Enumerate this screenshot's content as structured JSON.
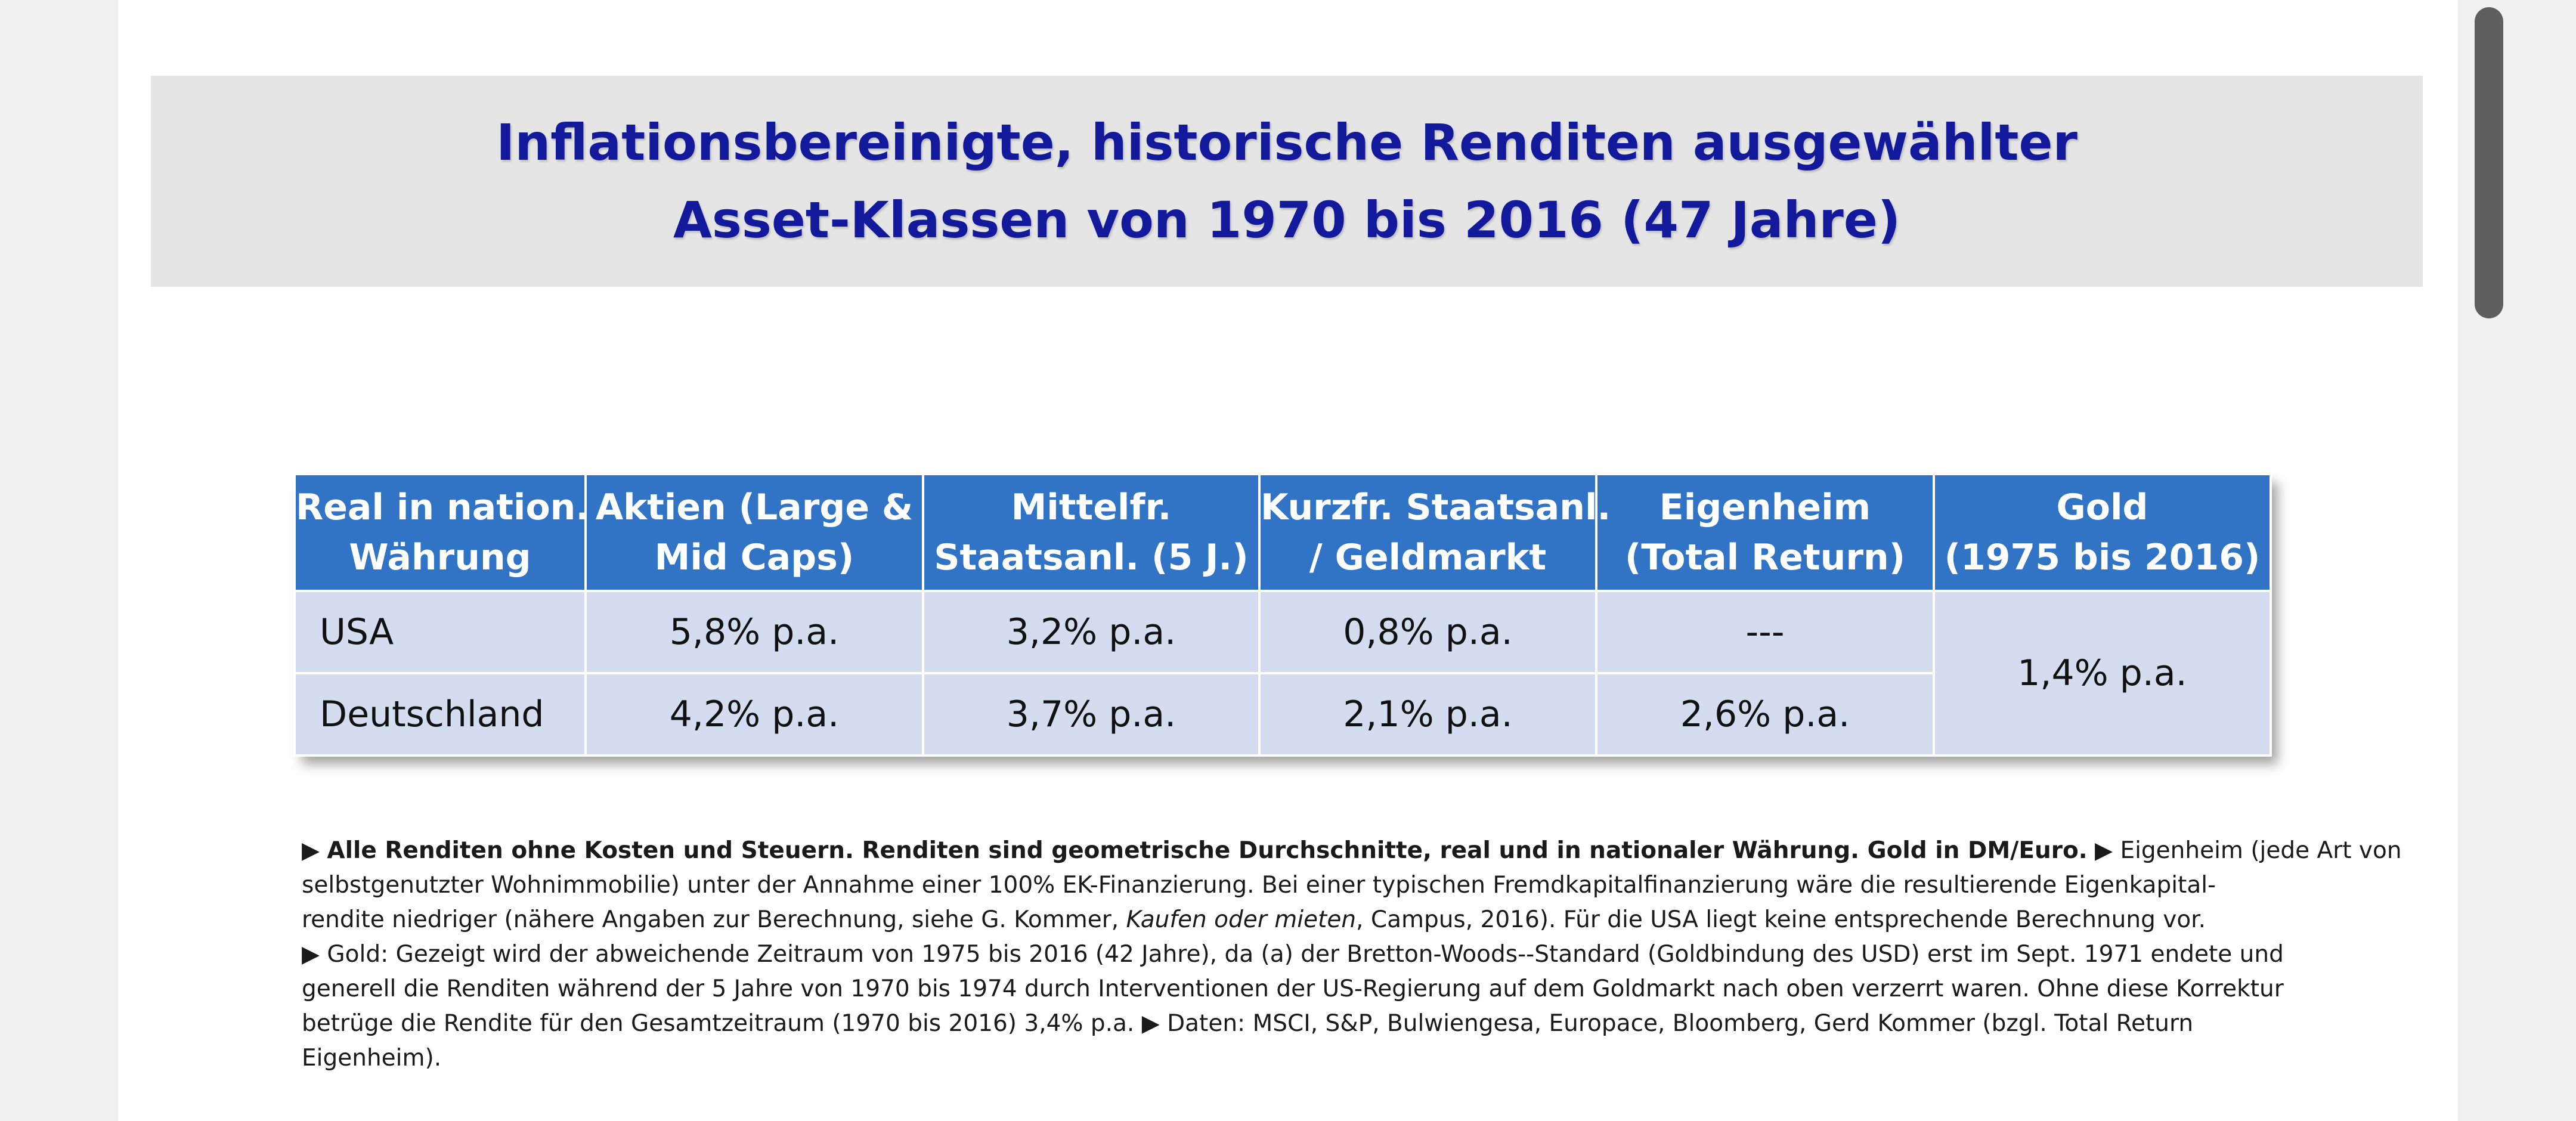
{
  "title": {
    "line1": "Inflationsbereinigte, historische Renditen ausgewählter",
    "line2": "Asset-Klassen von 1970 bis 2016 (47 Jahre)"
  },
  "table": {
    "headers": [
      [
        "Real in nation.",
        "Währung"
      ],
      [
        "Aktien (Large &",
        "Mid Caps)"
      ],
      [
        "Mittelfr.",
        "Staatsanl. (5 J.)"
      ],
      [
        "Kurzfr. Staatsanl.",
        "/ Geldmarkt"
      ],
      [
        "Eigenheim",
        "(Total Return)"
      ],
      [
        "Gold",
        "(1975 bis 2016)"
      ]
    ],
    "rows": [
      {
        "label": "USA",
        "aktien": "5,8% p.a.",
        "mittelfr": "3,2% p.a.",
        "kurzfr": "0,8% p.a.",
        "eigenheim": "---"
      },
      {
        "label": "Deutschland",
        "aktien": "4,2% p.a.",
        "mittelfr": "3,7% p.a.",
        "kurzfr": "2,1% p.a.",
        "eigenheim": "2,6% p.a."
      }
    ],
    "gold": "1,4% p.a."
  },
  "notes": {
    "bullet": "▶",
    "l1_bold": "Alle Renditen ohne Kosten und Steuern. Renditen sind geometrische Durchschnitte, real und in nationaler Währung. Gold in DM/Euro.",
    "l1_rest": "Eigenheim (jede Art von",
    "l2": "selbstgenutzter Wohnimmobilie) unter der Annahme einer 100% EK-Finanzierung. Bei einer typischen Fremdkapitalfinanzierung wäre die resultierende Eigenkapital-",
    "l3_a": "rendite niedriger (nähere Angaben zur Berechnung, siehe G. Kommer,",
    "l3_italic": "Kaufen oder mieten",
    "l3_b": ", Campus, 2016). Für die USA liegt keine entsprechende Berechnung vor.",
    "l4": "Gold: Gezeigt wird der abweichende Zeitraum von 1975 bis 2016 (42 Jahre), da (a) der Bretton-Woods--Standard (Goldbindung des USD) erst im Sept. 1971 endete und",
    "l5": "generell die Renditen während der 5 Jahre von 1970 bis 1974 durch Interventionen der US-Regierung auf dem Goldmarkt nach oben verzerrt waren. Ohne diese Korrektur",
    "l6_a": "betrüge die Rendite für den Gesamtzeitraum (1970 bis 2016) 3,4% p.a.",
    "l6_b": "Daten: MSCI, S&P, Bulwiengesa, Europace, Bloomberg, Gerd Kommer (bzgl. Total Return",
    "l7": "Eigenheim)."
  }
}
